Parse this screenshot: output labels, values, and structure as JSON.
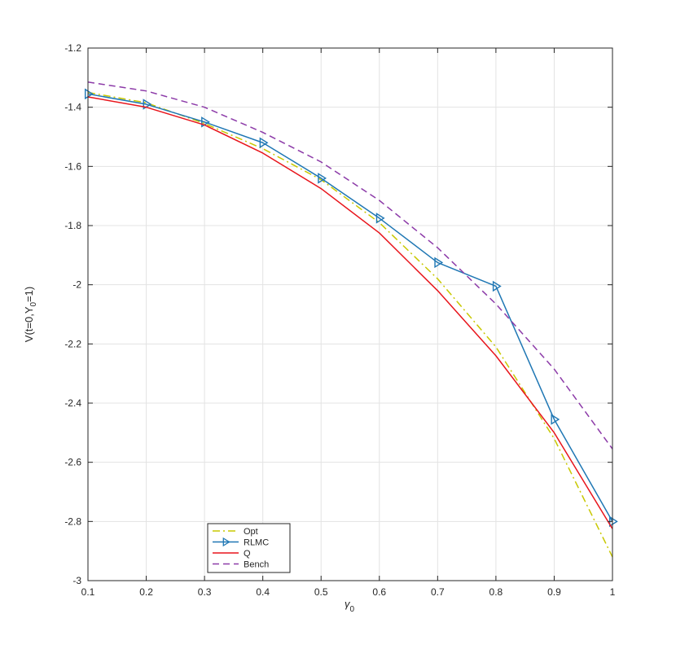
{
  "chart_data": {
    "type": "line",
    "title": "",
    "xlabel_main": "γ",
    "xlabel_sub": "0",
    "ylabel_parts": [
      "V(t=0,Y",
      "0",
      "=1)"
    ],
    "xlim": [
      0.1,
      1
    ],
    "ylim": [
      -3,
      -1.2
    ],
    "xticks": [
      0.1,
      0.2,
      0.3,
      0.4,
      0.5,
      0.6,
      0.7,
      0.8,
      0.9,
      1
    ],
    "xtick_labels": [
      "0.1",
      "0.2",
      "0.3",
      "0.4",
      "0.5",
      "0.6",
      "0.7",
      "0.8",
      "0.9",
      "1"
    ],
    "yticks": [
      -3,
      -2.8,
      -2.6,
      -2.4,
      -2.2,
      -2,
      -1.8,
      -1.6,
      -1.4,
      -1.2
    ],
    "ytick_labels": [
      "-3",
      "-2.8",
      "-2.6",
      "-2.4",
      "-2.2",
      "-2",
      "-1.8",
      "-1.6",
      "-1.4",
      "-1.2"
    ],
    "grid": true,
    "legend_position": "bottom-left",
    "x": [
      0.1,
      0.2,
      0.3,
      0.4,
      0.5,
      0.6,
      0.7,
      0.8,
      0.9,
      1
    ],
    "series": [
      {
        "name": "Opt",
        "color": "#c8c800",
        "dash": "9,4,2,4",
        "marker": "none",
        "values": [
          -1.35,
          -1.385,
          -1.455,
          -1.54,
          -1.645,
          -1.79,
          -1.98,
          -2.21,
          -2.52,
          -2.92
        ]
      },
      {
        "name": "RLMC",
        "color": "#1f77b4",
        "dash": "",
        "marker": "triangle-right",
        "values": [
          -1.355,
          -1.39,
          -1.45,
          -1.52,
          -1.64,
          -1.775,
          -1.925,
          -2.005,
          -2.455,
          -2.8
        ]
      },
      {
        "name": "Q",
        "color": "#e8141b",
        "dash": "",
        "marker": "none",
        "values": [
          -1.365,
          -1.4,
          -1.46,
          -1.555,
          -1.675,
          -1.825,
          -2.02,
          -2.24,
          -2.5,
          -2.825
        ]
      },
      {
        "name": "Bench",
        "color": "#8c3aa8",
        "dash": "8,5",
        "marker": "none",
        "values": [
          -1.315,
          -1.345,
          -1.4,
          -1.485,
          -1.585,
          -1.715,
          -1.875,
          -2.065,
          -2.285,
          -2.555
        ]
      }
    ]
  }
}
